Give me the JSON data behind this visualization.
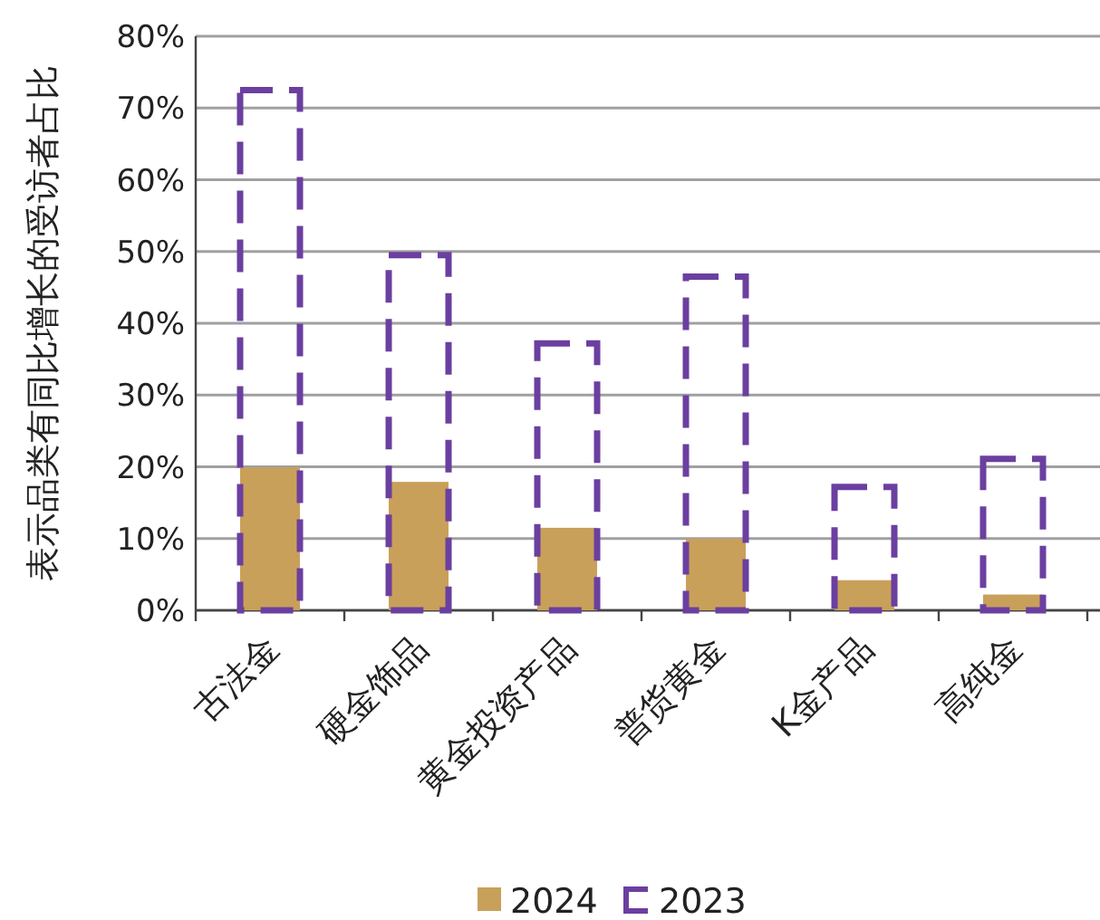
{
  "chart_data": {
    "type": "bar",
    "ylabel": "表示品类有同比增长的受访者占比",
    "categories": [
      "古法金",
      "硬金饰品",
      "黄金投资产品",
      "普货黄金",
      "K金产品",
      "高纯金"
    ],
    "series": [
      {
        "name": "2024",
        "color": "#c9a05a",
        "values": [
          19.9,
          17.9,
          11.5,
          10,
          4.2,
          2.2
        ]
      },
      {
        "name": "2023",
        "color": "#6b3fa0",
        "line_style": "dashed",
        "values": [
          72.5,
          49.5,
          37.2,
          46.5,
          17.2,
          21.1
        ]
      }
    ],
    "ylim": [
      0,
      80
    ],
    "yticks": [
      {
        "value": 0,
        "label": "0%"
      },
      {
        "value": 10,
        "label": "10%"
      },
      {
        "value": 20,
        "label": "20%"
      },
      {
        "value": 30,
        "label": "30%"
      },
      {
        "value": 40,
        "label": "40%"
      },
      {
        "value": 50,
        "label": "50%"
      },
      {
        "value": 60,
        "label": "60%"
      },
      {
        "value": 70,
        "label": "70%"
      },
      {
        "value": 80,
        "label": "80%"
      }
    ],
    "grid": "y",
    "legend": "bottom"
  }
}
